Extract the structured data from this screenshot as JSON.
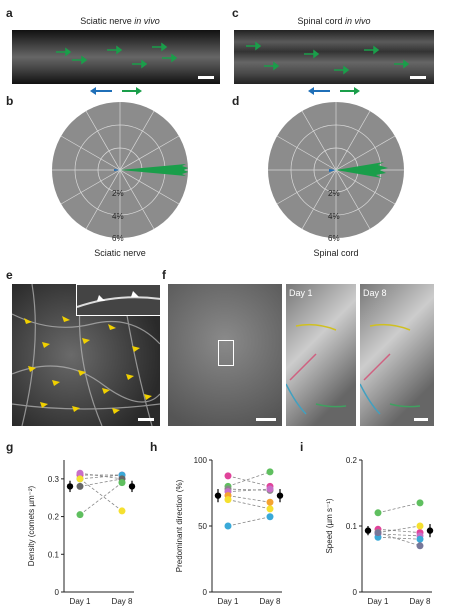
{
  "panels": {
    "a": {
      "label": "a",
      "title_main": "Sciatic nerve ",
      "title_em": "in vivo"
    },
    "b": {
      "label": "b",
      "caption": "Sciatic nerve",
      "rings": [
        "2%",
        "4%",
        "6%"
      ]
    },
    "c": {
      "label": "c",
      "title_main": "Spinal cord ",
      "title_em": "in vivo"
    },
    "d": {
      "label": "d",
      "caption": "Spinal cord",
      "rings": [
        "2%",
        "4%",
        "6%"
      ]
    },
    "e": {
      "label": "e"
    },
    "f": {
      "label": "f",
      "day1": "Day 1",
      "day8": "Day 8"
    },
    "g": {
      "label": "g"
    },
    "h": {
      "label": "h"
    },
    "i": {
      "label": "i"
    }
  },
  "colors": {
    "forward": "#1a9e4a",
    "backward": "#1f6fb8",
    "polar_bg": "#8c8c8c"
  },
  "chart_data": [
    {
      "type": "scatter",
      "panel": "g",
      "ylabel": "Density (comets µm⁻²)",
      "categories": [
        "Day 1",
        "Day 8"
      ],
      "ylim": [
        0,
        0.35
      ],
      "yticks": [
        "0",
        "0.1",
        "0.2",
        "0.3"
      ],
      "series": [
        {
          "color": "#e0439a",
          "values": [
            0.31,
            0.31
          ]
        },
        {
          "color": "#c86fc8",
          "values": [
            0.315,
            0.3
          ]
        },
        {
          "color": "#3aa9d8",
          "values": [
            0.3,
            0.31
          ]
        },
        {
          "color": "#666666",
          "values": [
            0.28,
            0.3
          ]
        },
        {
          "color": "#5fbf5f",
          "values": [
            0.205,
            0.29
          ]
        },
        {
          "color": "#f5e030",
          "values": [
            0.3,
            0.215
          ]
        }
      ],
      "mean": [
        0.28,
        0.28
      ],
      "error": [
        0.015,
        0.015
      ]
    },
    {
      "type": "scatter",
      "panel": "h",
      "ylabel": "Predominant direction (%)",
      "categories": [
        "Day 1",
        "Day 8"
      ],
      "ylim": [
        0,
        100
      ],
      "yticks": [
        "0",
        "50",
        "100"
      ],
      "series": [
        {
          "color": "#e0439a",
          "values": [
            88,
            80
          ]
        },
        {
          "color": "#5fbf5f",
          "values": [
            80,
            91
          ]
        },
        {
          "color": "#888888",
          "values": [
            78,
            77
          ]
        },
        {
          "color": "#c86fc8",
          "values": [
            76,
            78
          ]
        },
        {
          "color": "#f5a330",
          "values": [
            73,
            68
          ]
        },
        {
          "color": "#f5e030",
          "values": [
            70,
            63
          ]
        },
        {
          "color": "#3aa9d8",
          "values": [
            50,
            57
          ]
        }
      ],
      "mean": [
        73,
        73
      ],
      "error": [
        5,
        5
      ]
    },
    {
      "type": "scatter",
      "panel": "i",
      "ylabel": "Speed (µm s⁻¹)",
      "categories": [
        "Day 1",
        "Day 8"
      ],
      "ylim": [
        0,
        0.2
      ],
      "yticks": [
        "0",
        "0.1",
        "0.2"
      ],
      "series": [
        {
          "color": "#5fbf5f",
          "values": [
            0.12,
            0.135
          ]
        },
        {
          "color": "#e0439a",
          "values": [
            0.095,
            0.09
          ]
        },
        {
          "color": "#f5e030",
          "values": [
            0.09,
            0.1
          ]
        },
        {
          "color": "#c86fc8",
          "values": [
            0.088,
            0.085
          ]
        },
        {
          "color": "#3aa9d8",
          "values": [
            0.083,
            0.08
          ]
        },
        {
          "color": "#777799",
          "values": [
            0.09,
            0.07
          ]
        }
      ],
      "mean": [
        0.093,
        0.093
      ],
      "error": [
        0.007,
        0.01
      ]
    }
  ]
}
